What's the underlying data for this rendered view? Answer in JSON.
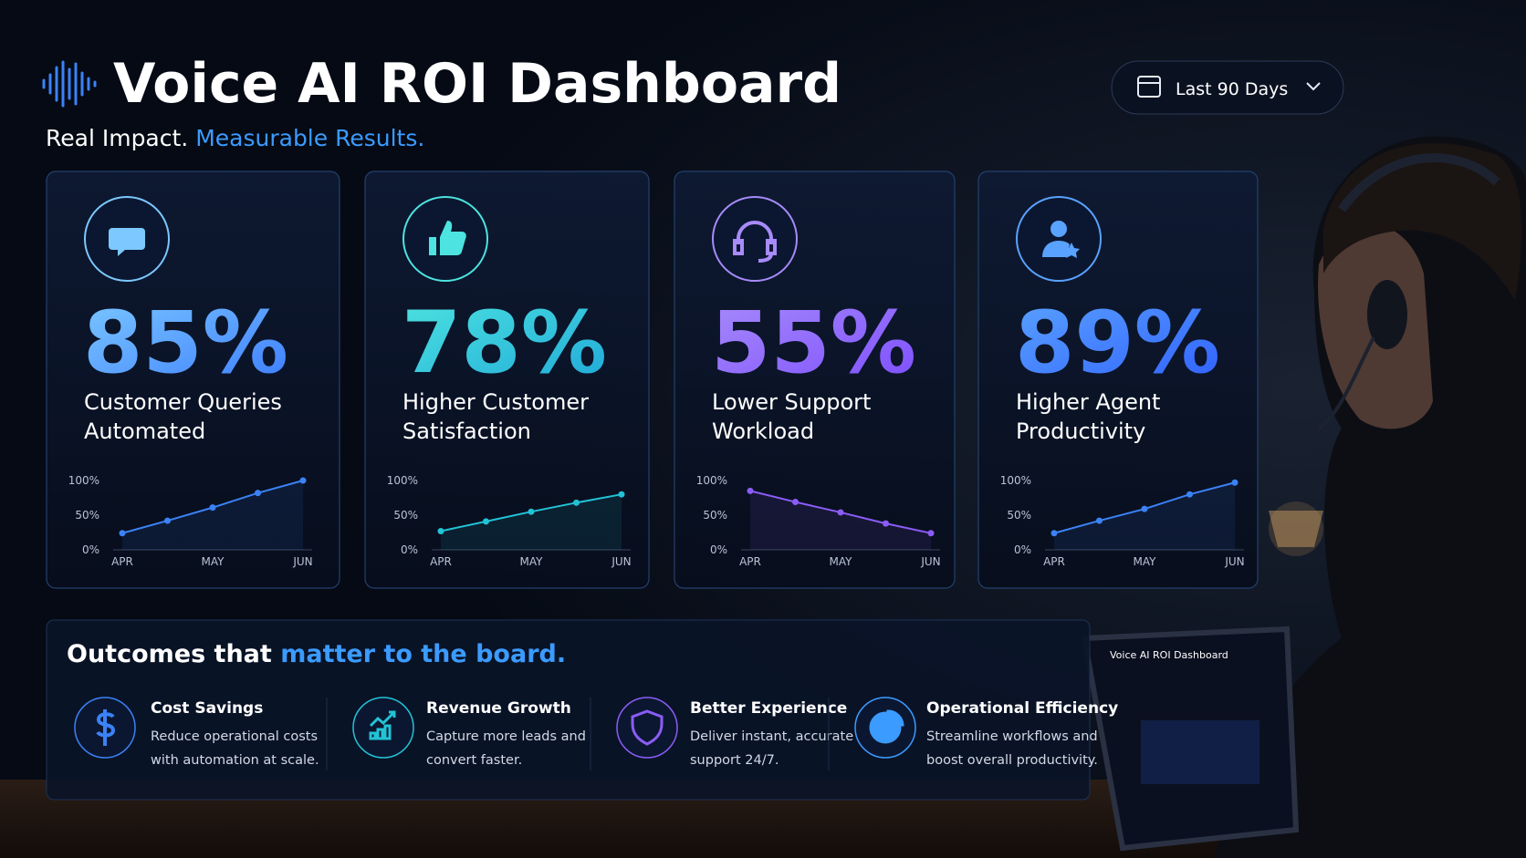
{
  "header": {
    "title": "Voice AI ROI Dashboard",
    "subtitle": [
      "Real Impact. ",
      "Measurable Results."
    ],
    "date_range": "Last 90 Days"
  },
  "cards": [
    {
      "stat": "85%",
      "label": [
        "Customer Queries",
        "Automated"
      ],
      "color": "#3b82f6",
      "stat_colors": [
        "#7cc8ff",
        "#3b7bff"
      ],
      "chart": {
        "categories": [
          "APR",
          null,
          "MAY",
          null,
          "JUN"
        ],
        "values": [
          24,
          42,
          61,
          82,
          100
        ],
        "ylim": [
          0,
          100
        ],
        "yticks": [
          {
            "value": 0,
            "label": "0%"
          },
          {
            "value": 50,
            "label": "50%"
          },
          {
            "value": 100,
            "label": "100%"
          }
        ]
      }
    },
    {
      "stat": "78%",
      "label": [
        "Higher Customer",
        "Satisfaction"
      ],
      "color": "#22c3d6",
      "stat_colors": [
        "#4de3e0",
        "#1fa8d8"
      ],
      "chart": {
        "categories": [
          "APR",
          null,
          "MAY",
          null,
          "JUN"
        ],
        "values": [
          27,
          41,
          55,
          68,
          80
        ],
        "ylim": [
          0,
          100
        ],
        "yticks": [
          {
            "value": 0,
            "label": "0%"
          },
          {
            "value": 50,
            "label": "50%"
          },
          {
            "value": 100,
            "label": "100%"
          }
        ]
      }
    },
    {
      "stat": "55%",
      "label": [
        "Lower Support",
        "Workload"
      ],
      "color": "#8b5cf6",
      "stat_colors": [
        "#a78bfa",
        "#7c4dff"
      ],
      "chart": {
        "categories": [
          "APR",
          null,
          "MAY",
          null,
          "JUN"
        ],
        "values": [
          85,
          69,
          54,
          38,
          24
        ],
        "ylim": [
          0,
          100
        ],
        "yticks": [
          {
            "value": 0,
            "label": "0%"
          },
          {
            "value": 50,
            "label": "50%"
          },
          {
            "value": 100,
            "label": "100%"
          }
        ]
      }
    },
    {
      "stat": "89%",
      "label": [
        "Higher Agent",
        "Productivity"
      ],
      "color": "#3b82f6",
      "stat_colors": [
        "#5aa2ff",
        "#2f5fff"
      ],
      "chart": {
        "categories": [
          "APR",
          null,
          "MAY",
          null,
          "JUN"
        ],
        "values": [
          24,
          42,
          59,
          80,
          97
        ],
        "ylim": [
          0,
          100
        ],
        "yticks": [
          {
            "value": 0,
            "label": "0%"
          },
          {
            "value": 50,
            "label": "50%"
          },
          {
            "value": 100,
            "label": "100%"
          }
        ]
      }
    }
  ],
  "outcomes": {
    "heading": [
      "Outcomes that ",
      "matter to the board."
    ],
    "items": [
      {
        "title": "Cost Savings",
        "description": [
          "Reduce operational costs",
          "with automation at scale."
        ]
      },
      {
        "title": "Revenue Growth",
        "description": [
          "Capture more leads and",
          "convert faster."
        ]
      },
      {
        "title": "Better Experience",
        "description": [
          "Deliver instant, accurate",
          "support 24/7."
        ]
      },
      {
        "title": "Operational Efficiency",
        "description": [
          "Streamline workflows and",
          "boost overall productivity."
        ]
      }
    ]
  },
  "tablet": {
    "title": "Voice AI ROI Dashboard"
  }
}
